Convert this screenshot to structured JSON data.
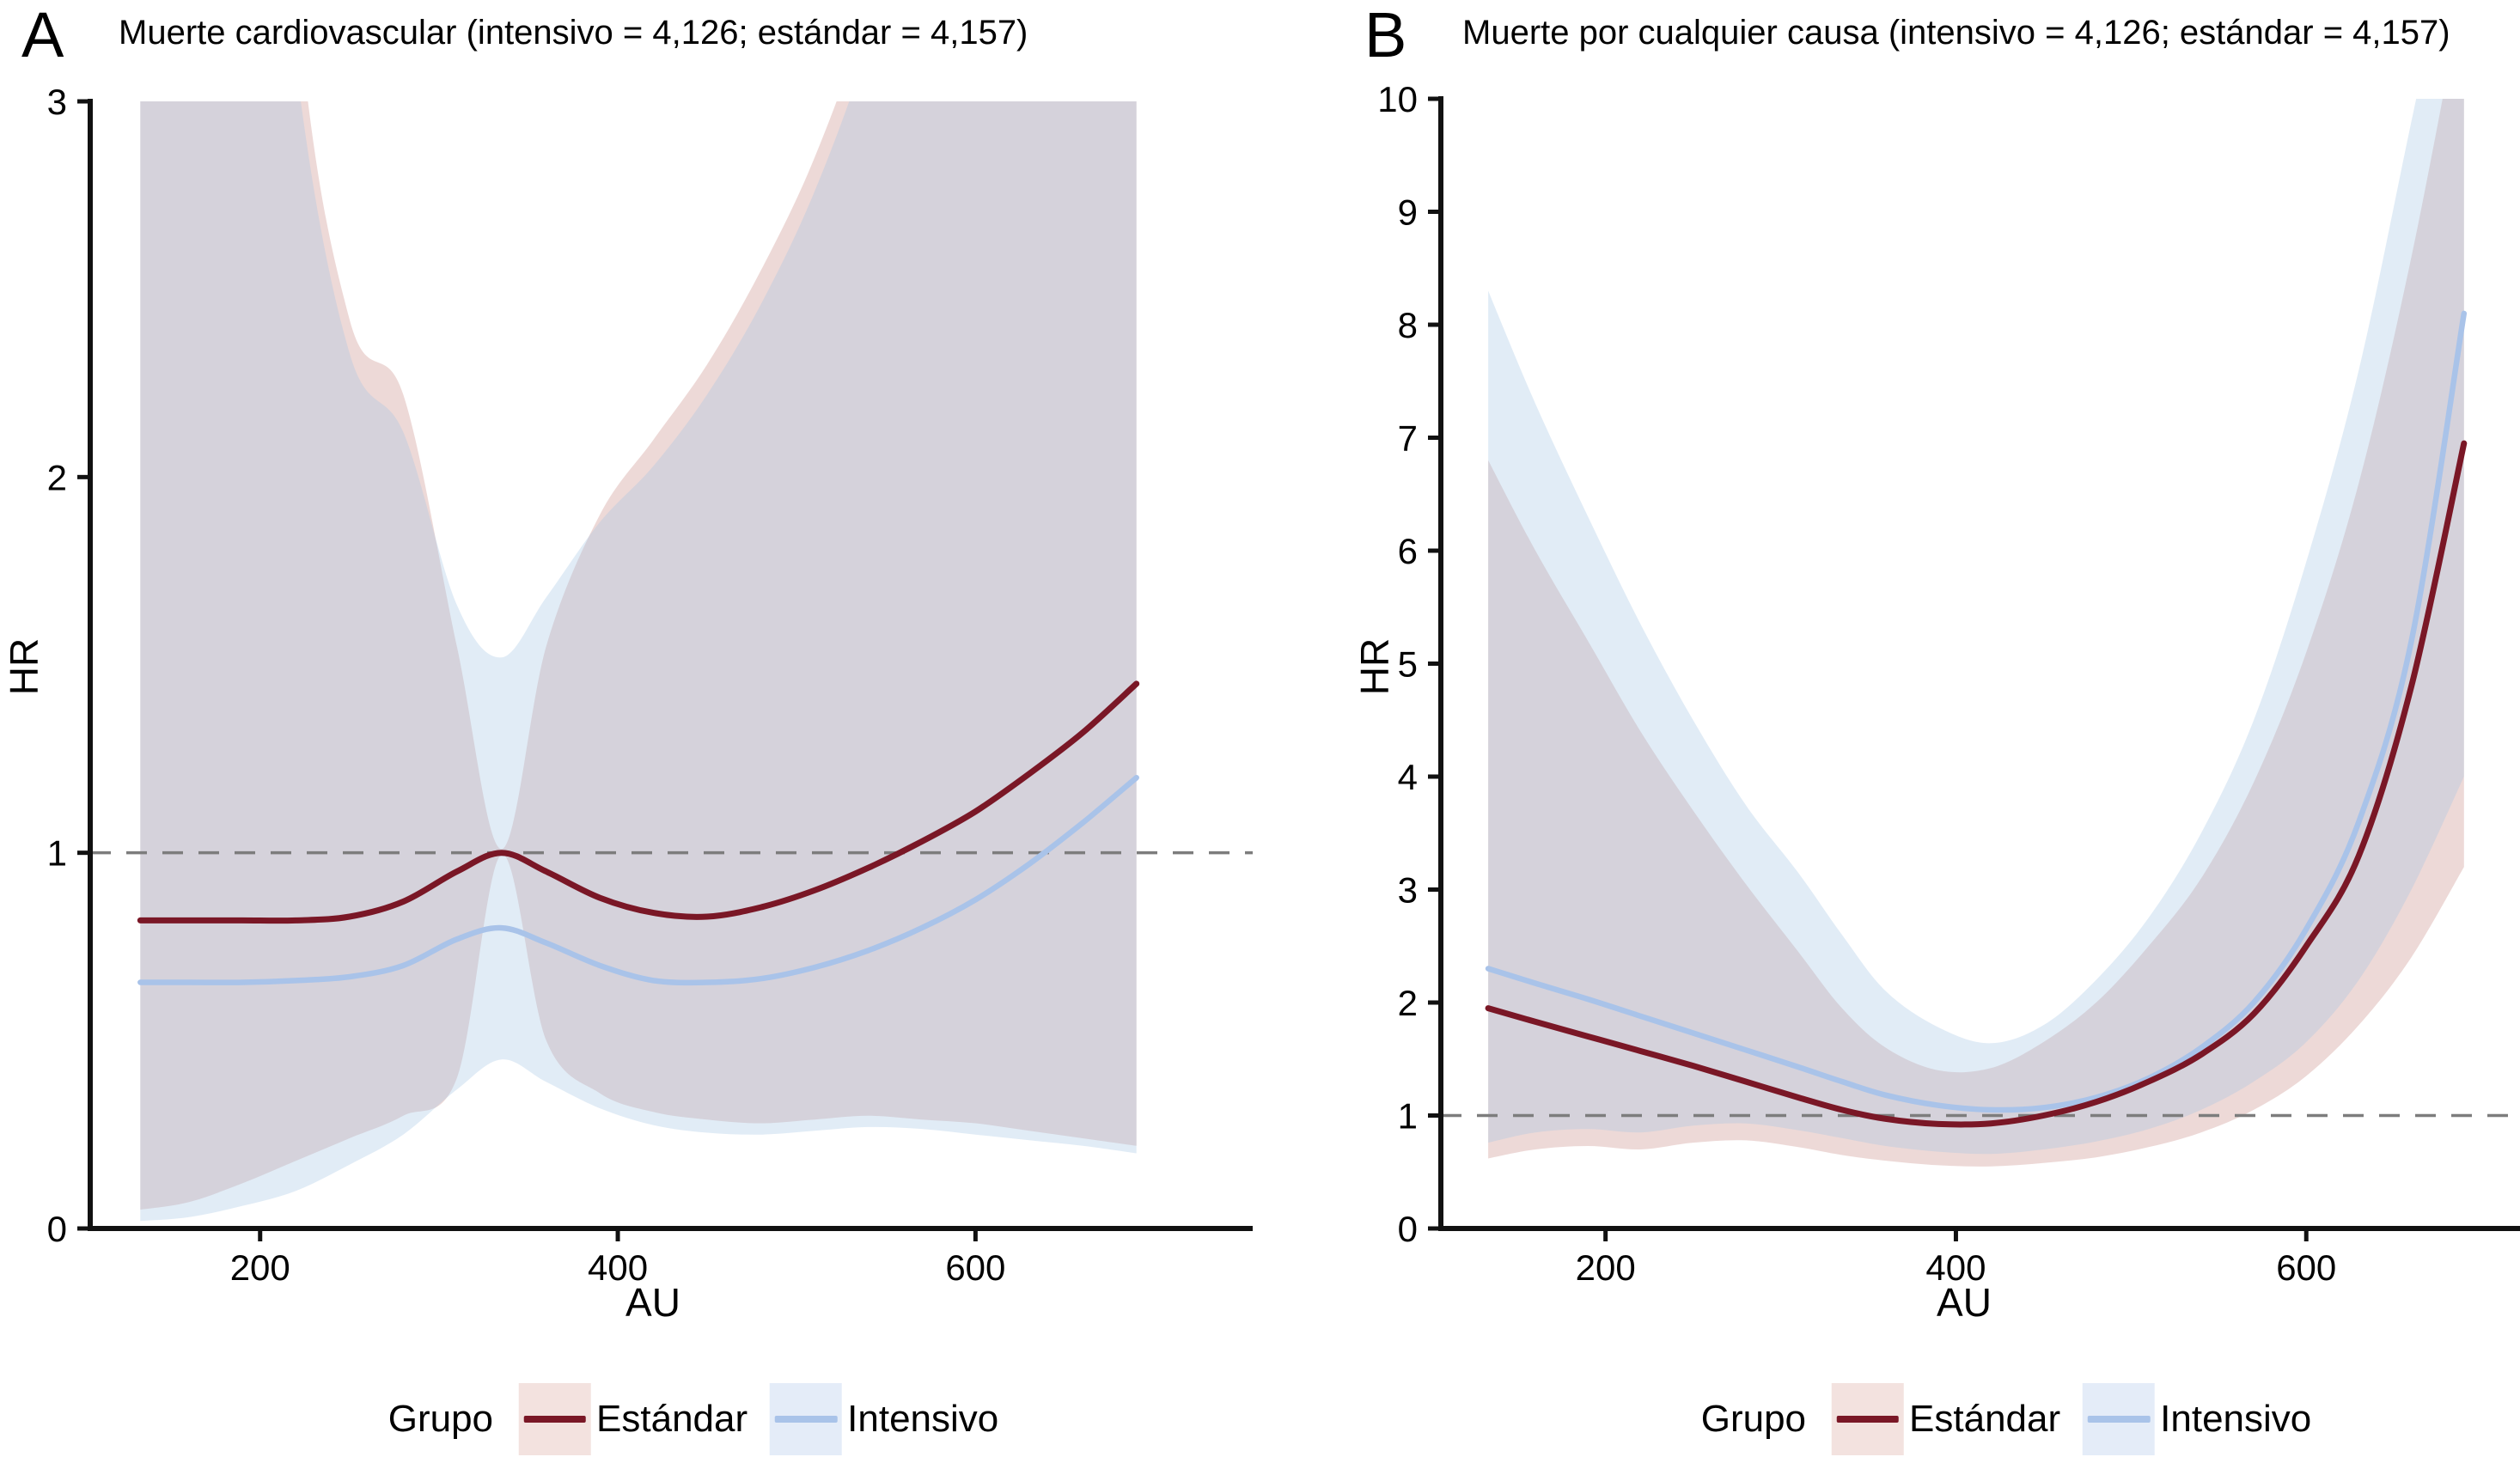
{
  "legend": {
    "title": "Grupo",
    "entries": [
      {
        "label": "Estándar",
        "line": "#7a1726",
        "fill": "#f3e2df"
      },
      {
        "label": "Intensivo",
        "line": "#a9c3e9",
        "fill": "#e4ecf8"
      }
    ]
  },
  "colors": {
    "estandar_line": "#7a1726",
    "intensivo_line": "#a9c3e9",
    "estandar_band": "rgba(190,120,110,0.28)",
    "intensivo_band": "rgba(164,196,228,0.33)",
    "ref_line": "#7d7d7d",
    "axis": "#111111"
  },
  "chart_data": [
    {
      "type": "line",
      "panel": "A",
      "letter": "A",
      "title": "Muerte cardiovascular (intensivo = 4,126; estándar = 4,157)",
      "intensivo_n": "4,126",
      "estandar_n": "4,157",
      "xlabel": "AU",
      "ylabel": "HR",
      "xlim": [
        105,
        755
      ],
      "ylim": [
        0,
        3
      ],
      "xticks": [
        200,
        400,
        600
      ],
      "yticks": [
        0,
        1,
        2,
        3
      ],
      "ref_line_y": 1,
      "grid": false,
      "legend_position": "bottom",
      "x": [
        133,
        160,
        190,
        220,
        250,
        280,
        310,
        335,
        360,
        390,
        420,
        450,
        480,
        510,
        540,
        570,
        600,
        630,
        660,
        690
      ],
      "series": [
        {
          "name": "Estándar",
          "y": [
            0.82,
            0.82,
            0.82,
            0.82,
            0.83,
            0.87,
            0.95,
            1.0,
            0.95,
            0.88,
            0.84,
            0.83,
            0.855,
            0.9,
            0.96,
            1.03,
            1.11,
            1.21,
            1.32,
            1.45
          ],
          "upper": [
            14,
            9,
            5.5,
            3.3,
            2.42,
            2.22,
            1.55,
            1.01,
            1.55,
            1.9,
            2.1,
            2.3,
            2.55,
            2.85,
            3.25,
            3.8,
            4.6,
            5.6,
            7.0,
            9.0
          ],
          "lower": [
            0.05,
            0.07,
            0.12,
            0.18,
            0.24,
            0.3,
            0.4,
            0.995,
            0.5,
            0.36,
            0.31,
            0.29,
            0.28,
            0.29,
            0.3,
            0.29,
            0.28,
            0.26,
            0.24,
            0.22
          ]
        },
        {
          "name": "Intensivo",
          "y": [
            0.655,
            0.655,
            0.655,
            0.66,
            0.67,
            0.7,
            0.77,
            0.8,
            0.76,
            0.7,
            0.66,
            0.655,
            0.665,
            0.695,
            0.74,
            0.8,
            0.875,
            0.97,
            1.08,
            1.2
          ],
          "upper": [
            12,
            7.5,
            4.6,
            3.1,
            2.33,
            2.12,
            1.66,
            1.52,
            1.68,
            1.88,
            2.03,
            2.22,
            2.46,
            2.76,
            3.15,
            3.65,
            4.4,
            5.4,
            6.8,
            8.8
          ],
          "lower": [
            0.02,
            0.03,
            0.06,
            0.1,
            0.17,
            0.25,
            0.37,
            0.45,
            0.39,
            0.32,
            0.275,
            0.255,
            0.25,
            0.26,
            0.27,
            0.265,
            0.25,
            0.235,
            0.22,
            0.2
          ]
        }
      ]
    },
    {
      "type": "line",
      "panel": "B",
      "letter": "B",
      "title": "Muerte por cualquier causa (intensivo = 4,126; estándar = 4,157)",
      "intensivo_n": "4,126",
      "estandar_n": "4,157",
      "xlabel": "AU",
      "ylabel": "HR",
      "xlim": [
        106,
        722
      ],
      "ylim": [
        0,
        10
      ],
      "xticks": [
        200,
        400,
        600
      ],
      "yticks": [
        0,
        1,
        2,
        3,
        4,
        5,
        6,
        7,
        8,
        9,
        10
      ],
      "ref_line_y": 1,
      "grid": false,
      "legend_position": "bottom",
      "x": [
        133,
        160,
        190,
        220,
        250,
        280,
        310,
        335,
        360,
        390,
        420,
        450,
        480,
        510,
        540,
        570,
        600,
        630,
        660,
        690
      ],
      "series": [
        {
          "name": "Estándar",
          "y": [
            1.95,
            1.83,
            1.7,
            1.57,
            1.44,
            1.3,
            1.16,
            1.05,
            0.97,
            0.925,
            0.93,
            1.0,
            1.12,
            1.3,
            1.54,
            1.9,
            2.5,
            3.3,
            4.8,
            6.95
          ],
          "upper": [
            6.8,
            6.0,
            5.2,
            4.4,
            3.7,
            3.05,
            2.45,
            1.95,
            1.6,
            1.4,
            1.42,
            1.65,
            2.0,
            2.5,
            3.1,
            3.95,
            5.1,
            6.6,
            8.6,
            11
          ],
          "lower": [
            0.62,
            0.7,
            0.73,
            0.7,
            0.76,
            0.78,
            0.72,
            0.65,
            0.6,
            0.56,
            0.55,
            0.58,
            0.63,
            0.72,
            0.85,
            1.05,
            1.35,
            1.8,
            2.4,
            3.2
          ]
        },
        {
          "name": "Intensivo",
          "y": [
            2.3,
            2.17,
            2.03,
            1.88,
            1.73,
            1.58,
            1.43,
            1.3,
            1.18,
            1.09,
            1.05,
            1.07,
            1.16,
            1.33,
            1.6,
            2.0,
            2.65,
            3.6,
            5.2,
            8.1
          ],
          "upper": [
            8.3,
            7.3,
            6.3,
            5.35,
            4.5,
            3.75,
            3.15,
            2.6,
            2.1,
            1.78,
            1.64,
            1.8,
            2.2,
            2.75,
            3.5,
            4.5,
            5.9,
            7.6,
            9.8,
            12
          ],
          "lower": [
            0.76,
            0.85,
            0.88,
            0.85,
            0.91,
            0.93,
            0.87,
            0.8,
            0.73,
            0.68,
            0.66,
            0.7,
            0.77,
            0.88,
            1.05,
            1.3,
            1.65,
            2.2,
            3.0,
            4.0
          ]
        }
      ]
    }
  ]
}
